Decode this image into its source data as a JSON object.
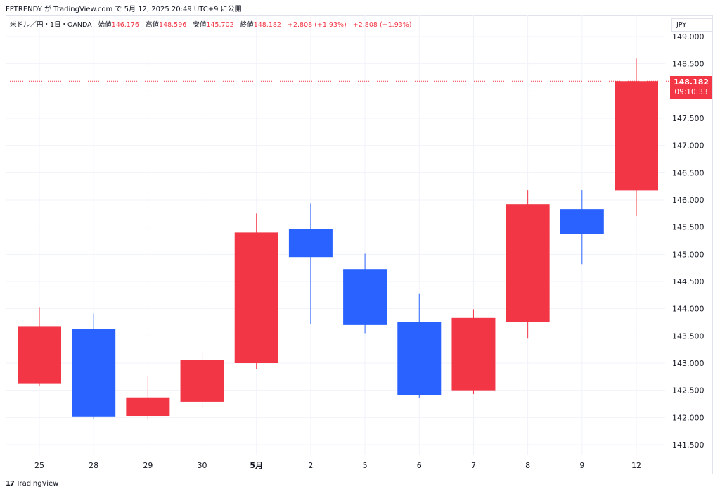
{
  "header": {
    "publisher": "FPTRENDY が TradingView.com で 5月 12, 2025 20:49 UTC+9 に公開"
  },
  "legend": {
    "symbol": "米ドル／円・1日・OANDA",
    "open_label": "始値",
    "open_value": "146.176",
    "high_label": "高値",
    "high_value": "148.596",
    "low_label": "安値",
    "low_value": "145.702",
    "close_label": "終値",
    "close_value": "148.182",
    "change": "+2.808 (+1.93%)",
    "change2": "+2.808 (+1.93%)"
  },
  "currency_label": "JPY",
  "last_price": {
    "price": "148.182",
    "countdown": "09:10:33"
  },
  "footer": {
    "brand": "TradingView",
    "logo": "17"
  },
  "colors": {
    "up": "#f23645",
    "down": "#2962ff",
    "grid": "#f0f3fa"
  },
  "chart_data": {
    "type": "candlestick",
    "title": "",
    "xlabel": "",
    "ylabel": "",
    "ylim": [
      141.3,
      149.2
    ],
    "y_ticks": [
      "149.000",
      "148.500",
      "148.000",
      "147.500",
      "147.000",
      "146.500",
      "146.000",
      "145.500",
      "145.000",
      "144.500",
      "144.000",
      "143.500",
      "143.000",
      "142.500",
      "142.000",
      "141.500"
    ],
    "categories": [
      "25",
      "28",
      "29",
      "30",
      "5月",
      "2",
      "5",
      "6",
      "7",
      "8",
      "9",
      "12"
    ],
    "candles": [
      {
        "x": "25",
        "open": 142.63,
        "high": 144.03,
        "low": 142.58,
        "close": 143.68
      },
      {
        "x": "28",
        "open": 143.63,
        "high": 143.91,
        "low": 141.98,
        "close": 142.02
      },
      {
        "x": "29",
        "open": 142.03,
        "high": 142.76,
        "low": 141.96,
        "close": 142.37
      },
      {
        "x": "30",
        "open": 142.29,
        "high": 143.19,
        "low": 142.17,
        "close": 143.06
      },
      {
        "x": "5月",
        "open": 143.0,
        "high": 145.75,
        "low": 142.89,
        "close": 145.4
      },
      {
        "x": "2",
        "open": 145.46,
        "high": 145.93,
        "low": 143.72,
        "close": 144.95
      },
      {
        "x": "5",
        "open": 144.73,
        "high": 145.01,
        "low": 143.55,
        "close": 143.7
      },
      {
        "x": "6",
        "open": 143.75,
        "high": 144.27,
        "low": 142.36,
        "close": 142.41
      },
      {
        "x": "7",
        "open": 142.5,
        "high": 143.99,
        "low": 142.43,
        "close": 143.83
      },
      {
        "x": "8",
        "open": 143.75,
        "high": 146.18,
        "low": 143.45,
        "close": 145.92
      },
      {
        "x": "9",
        "open": 145.83,
        "high": 146.18,
        "low": 144.82,
        "close": 145.37
      },
      {
        "x": "12",
        "open": 146.176,
        "high": 148.596,
        "low": 145.702,
        "close": 148.182
      }
    ],
    "last_price": 148.182,
    "grid": true
  }
}
